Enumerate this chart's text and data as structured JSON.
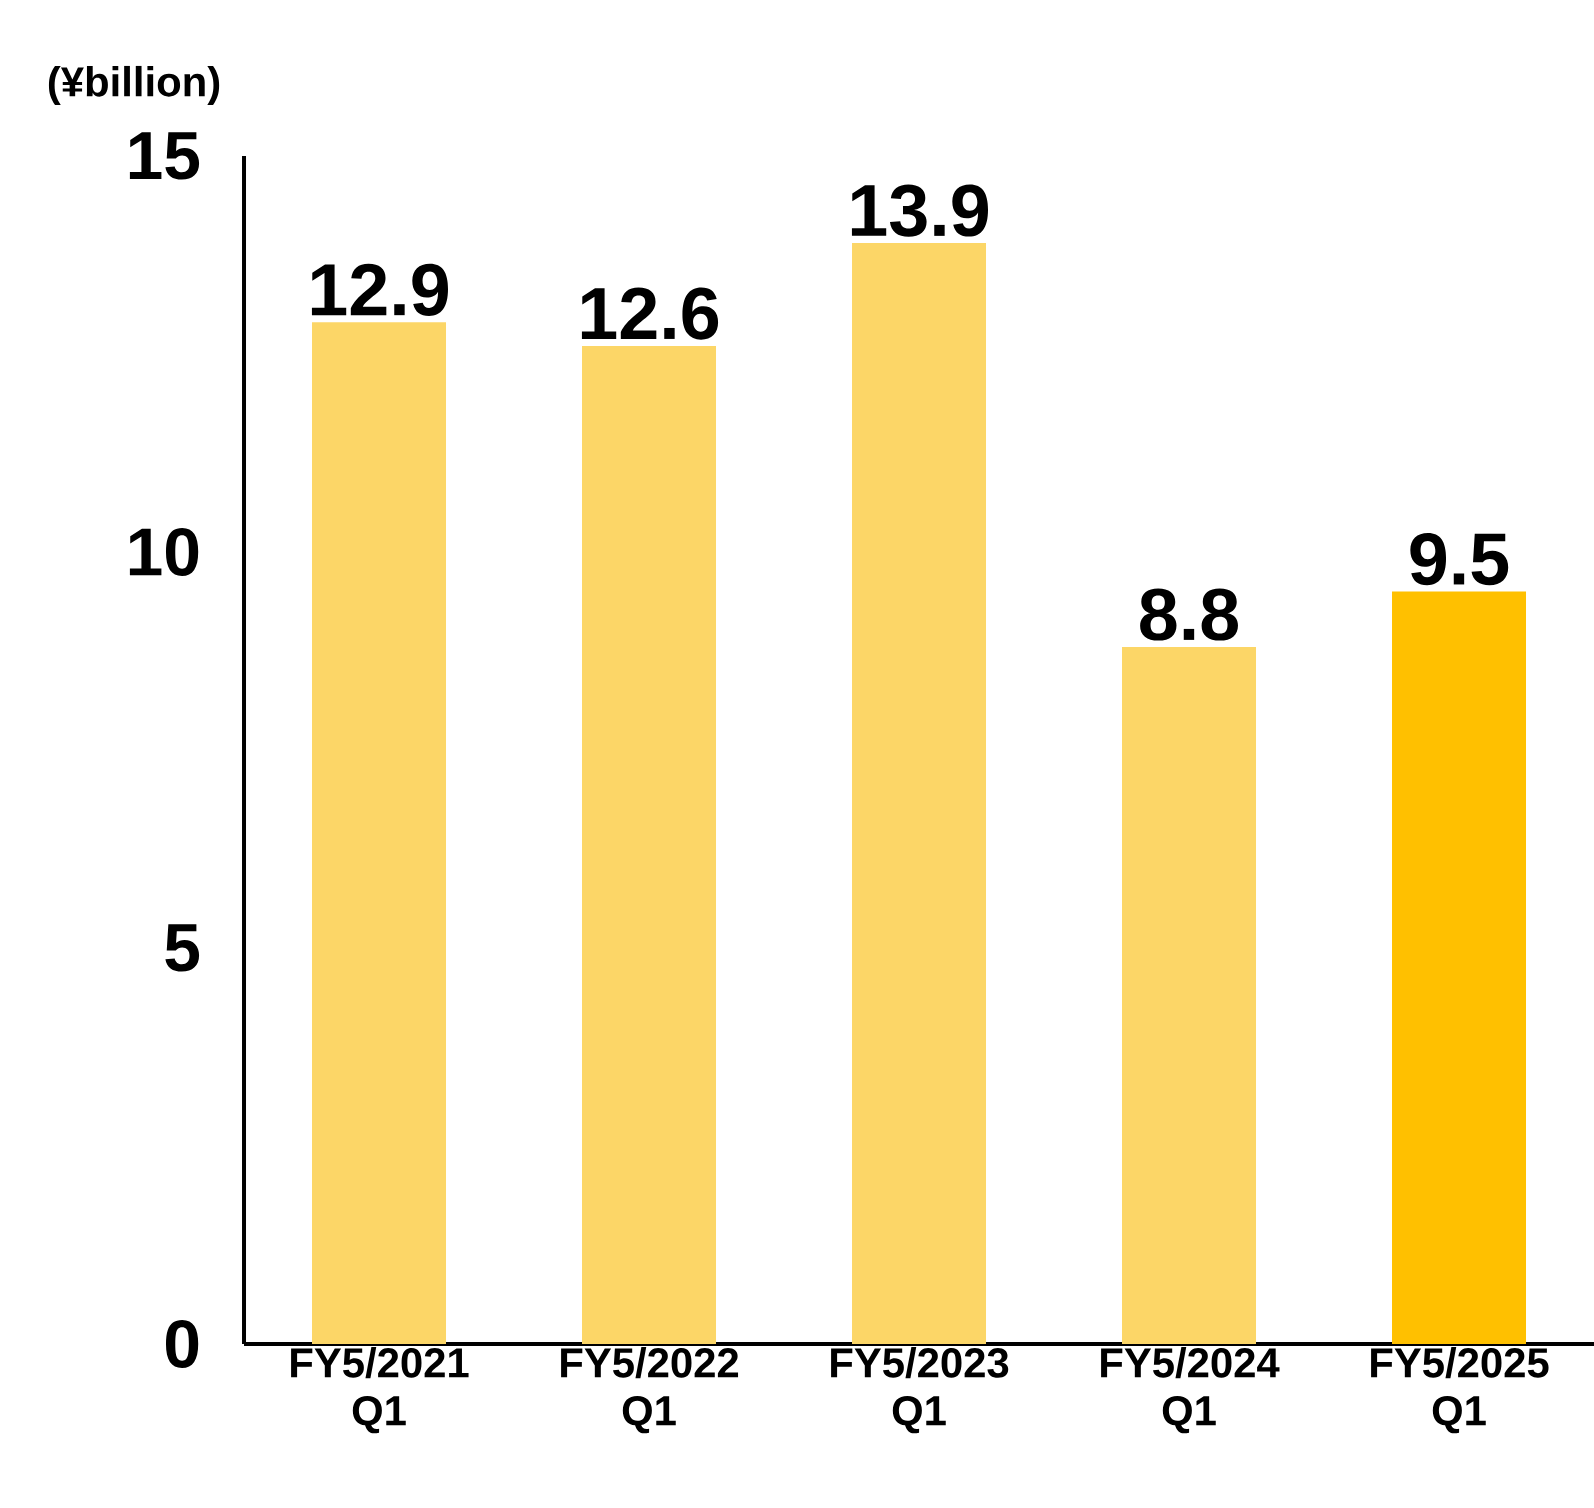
{
  "chart_data": {
    "type": "bar",
    "ylabel": "(¥billion)",
    "categories": [
      "FY5/2021 Q1",
      "FY5/2022 Q1",
      "FY5/2023 Q1",
      "FY5/2024 Q1",
      "FY5/2025 Q1"
    ],
    "values": [
      12.9,
      12.6,
      13.9,
      8.8,
      9.5
    ],
    "colors": [
      "#fcd667",
      "#fcd667",
      "#fcd667",
      "#fcd667",
      "#ffc000"
    ],
    "ylim": [
      0,
      15
    ],
    "yticks": [
      0,
      5,
      10,
      15
    ],
    "data_labels": true,
    "grid": false
  }
}
